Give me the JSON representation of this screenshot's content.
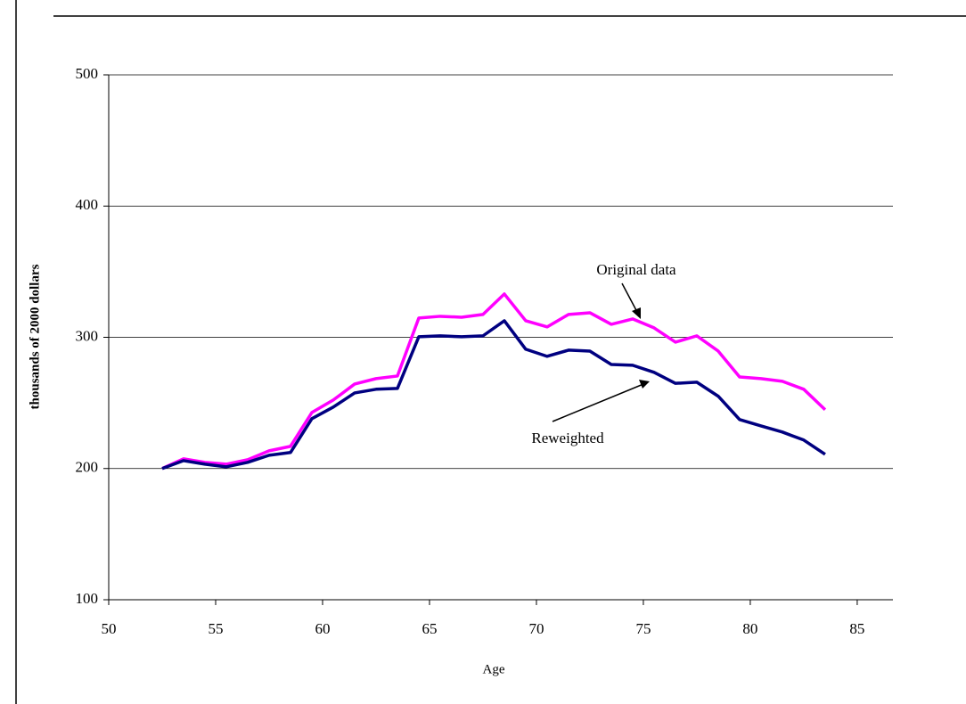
{
  "chart_data": {
    "type": "line",
    "x_label": "Age",
    "y_label": "thousands of 2000 dollars",
    "x": [
      52.5,
      53.5,
      54.5,
      55.5,
      56.5,
      57.5,
      58.5,
      59.5,
      60.5,
      61.5,
      62.5,
      63.5,
      64.5,
      65.5,
      66.5,
      67.5,
      68.5,
      69.5,
      70.5,
      71.5,
      72.5,
      73.5,
      74.5,
      75.5,
      76.5,
      77.5,
      78.5,
      79.5,
      80.5,
      81.5,
      82.5,
      83.5
    ],
    "series": [
      {
        "name": "Original data",
        "color": "#ff00ff",
        "values": [
          200.0,
          207.4,
          204.7,
          203.3,
          206.7,
          213.5,
          216.9,
          242.7,
          252.2,
          264.4,
          268.5,
          270.5,
          314.7,
          316.0,
          315.3,
          317.4,
          333.0,
          312.6,
          307.9,
          317.4,
          318.7,
          309.9,
          314.0,
          307.2,
          296.3,
          301.1,
          289.5,
          269.8,
          268.5,
          266.5,
          260.4,
          244.8
        ]
      },
      {
        "name": "Reweighted",
        "color": "#000080",
        "values": [
          200.0,
          206.0,
          203.3,
          201.3,
          204.7,
          210.1,
          212.2,
          238.0,
          246.8,
          257.6,
          260.4,
          261.0,
          300.4,
          301.1,
          300.4,
          301.1,
          312.6,
          290.9,
          285.5,
          290.2,
          289.5,
          279.3,
          278.7,
          273.3,
          264.9,
          265.8,
          255.1,
          237.3,
          232.5,
          227.8,
          221.7,
          210.8
        ]
      }
    ],
    "xlim": [
      50,
      86.67
    ],
    "xticks": [
      50,
      55,
      60,
      65,
      70,
      75,
      80,
      85
    ],
    "ylim": [
      100,
      500
    ],
    "yticks": [
      100,
      200,
      300,
      400,
      500
    ],
    "grid": true
  }
}
